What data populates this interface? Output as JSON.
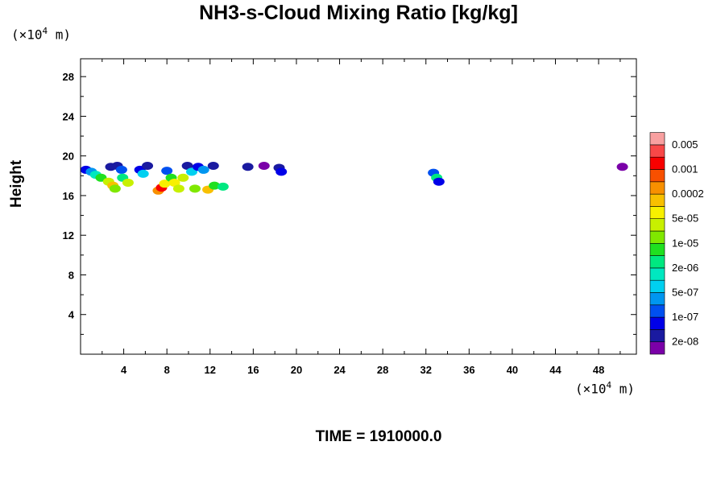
{
  "chart_data": {
    "type": "heatmap",
    "title": "NH3-s-Cloud Mixing Ratio [kg/kg]",
    "ylabel": "Height",
    "unit_label": "(×10",
    "unit_power": "4",
    "unit_suffix": " m)",
    "footer": "TIME = 1910000.0",
    "xlim": [
      0,
      51.5
    ],
    "ylim": [
      0,
      29.8
    ],
    "xticks": [
      "4",
      "8",
      "12",
      "16",
      "20",
      "24",
      "28",
      "32",
      "36",
      "40",
      "44",
      "48"
    ],
    "yticks": [
      "4",
      "8",
      "12",
      "16",
      "20",
      "24",
      "28"
    ],
    "colorbar": {
      "labels": [
        "2e-08",
        "1e-07",
        "5e-07",
        "2e-06",
        "1e-05",
        "5e-05",
        "0.0002",
        "0.001",
        "0.005"
      ],
      "colors": [
        "#7a00a8",
        "#1a1aa0",
        "#0000e8",
        "#0050f0",
        "#0096f0",
        "#00d0f0",
        "#00e8c0",
        "#00e880",
        "#20e020",
        "#80e800",
        "#c8f000",
        "#f8f000",
        "#f8c000",
        "#f89000",
        "#f85000",
        "#f80000",
        "#f84848",
        "#f8a0a0"
      ]
    },
    "cells": [
      {
        "x": 0.5,
        "y": 18.6,
        "v": 2
      },
      {
        "x": 1.0,
        "y": 18.4,
        "v": 4
      },
      {
        "x": 1.4,
        "y": 18.1,
        "v": 6
      },
      {
        "x": 1.9,
        "y": 17.8,
        "v": 8
      },
      {
        "x": 2.6,
        "y": 17.4,
        "v": 10
      },
      {
        "x": 3.0,
        "y": 17.0,
        "v": 12
      },
      {
        "x": 3.2,
        "y": 16.7,
        "v": 9
      },
      {
        "x": 2.8,
        "y": 18.9,
        "v": 1
      },
      {
        "x": 3.4,
        "y": 19.0,
        "v": 1
      },
      {
        "x": 3.8,
        "y": 18.6,
        "v": 3
      },
      {
        "x": 3.9,
        "y": 17.8,
        "v": 7
      },
      {
        "x": 4.4,
        "y": 17.3,
        "v": 10
      },
      {
        "x": 5.5,
        "y": 18.6,
        "v": 2
      },
      {
        "x": 5.8,
        "y": 18.2,
        "v": 5
      },
      {
        "x": 6.2,
        "y": 19.0,
        "v": 1
      },
      {
        "x": 7.2,
        "y": 16.5,
        "v": 13
      },
      {
        "x": 7.5,
        "y": 16.8,
        "v": 15
      },
      {
        "x": 7.8,
        "y": 17.2,
        "v": 11
      },
      {
        "x": 8.0,
        "y": 18.5,
        "v": 3
      },
      {
        "x": 8.4,
        "y": 17.8,
        "v": 8
      },
      {
        "x": 8.7,
        "y": 17.3,
        "v": 11
      },
      {
        "x": 9.1,
        "y": 16.7,
        "v": 10
      },
      {
        "x": 9.5,
        "y": 17.8,
        "v": 10
      },
      {
        "x": 9.9,
        "y": 19.0,
        "v": 1
      },
      {
        "x": 10.3,
        "y": 18.4,
        "v": 5
      },
      {
        "x": 10.6,
        "y": 16.7,
        "v": 9
      },
      {
        "x": 10.9,
        "y": 18.9,
        "v": 2
      },
      {
        "x": 11.4,
        "y": 18.6,
        "v": 4
      },
      {
        "x": 11.8,
        "y": 16.6,
        "v": 12
      },
      {
        "x": 12.4,
        "y": 17.0,
        "v": 8
      },
      {
        "x": 12.3,
        "y": 19.0,
        "v": 1
      },
      {
        "x": 13.2,
        "y": 16.9,
        "v": 7
      },
      {
        "x": 15.5,
        "y": 18.9,
        "v": 1
      },
      {
        "x": 17.0,
        "y": 19.0,
        "v": 0
      },
      {
        "x": 18.4,
        "y": 18.8,
        "v": 1
      },
      {
        "x": 18.6,
        "y": 18.4,
        "v": 2
      },
      {
        "x": 32.7,
        "y": 18.3,
        "v": 3
      },
      {
        "x": 33.0,
        "y": 17.8,
        "v": 7
      },
      {
        "x": 33.2,
        "y": 17.4,
        "v": 2
      },
      {
        "x": 50.2,
        "y": 18.9,
        "v": 0
      }
    ]
  }
}
